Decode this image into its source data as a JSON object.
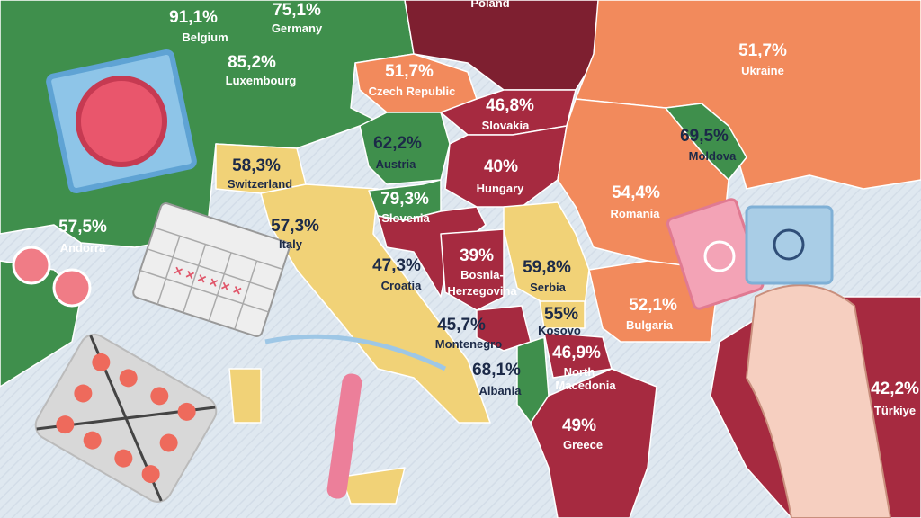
{
  "regions": [
    {
      "name": [
        "Poland"
      ]
    },
    {
      "name": [
        "Belgium"
      ],
      "value": "91,1%"
    },
    {
      "name": [
        "Germany"
      ],
      "value": "75,1%"
    },
    {
      "name": [
        "Luxembourg"
      ],
      "value": "85,2%"
    },
    {
      "name": [
        "Czech Republic"
      ],
      "value": "51,7%"
    },
    {
      "name": [
        "Ukraine"
      ],
      "value": "51,7%"
    },
    {
      "name": [
        "Slovakia"
      ],
      "value": "46,8%"
    },
    {
      "name": [
        "Austria"
      ],
      "value": "62,2%"
    },
    {
      "name": [
        "Moldova"
      ],
      "value": "69,5%"
    },
    {
      "name": [
        "Switzerland"
      ],
      "value": "58,3%"
    },
    {
      "name": [
        "Hungary"
      ],
      "value": "40%"
    },
    {
      "name": [
        "Romania"
      ],
      "value": "54,4%"
    },
    {
      "name": [
        "Slovenia"
      ],
      "value": "79,3%"
    },
    {
      "name": [
        "Andorra"
      ],
      "value": "57,5%"
    },
    {
      "name": [
        "Italy"
      ],
      "value": "57,3%"
    },
    {
      "name": [
        "Croatia"
      ],
      "value": "47,3%"
    },
    {
      "name": [
        "Bosnia-",
        "Herzegovina"
      ],
      "value": "39%"
    },
    {
      "name": [
        "Serbia"
      ],
      "value": "59,8%"
    },
    {
      "name": [
        "Kosovo"
      ],
      "value": "55%"
    },
    {
      "name": [
        "Bulgaria"
      ],
      "value": "52,1%"
    },
    {
      "name": [
        "Montenegro"
      ],
      "value": "45,7%"
    },
    {
      "name": [
        "North",
        "Macedonia"
      ],
      "value": "46,9%"
    },
    {
      "name": [
        "Albania"
      ],
      "value": "68,1%"
    },
    {
      "name": [
        "Greece"
      ],
      "value": "49%"
    },
    {
      "name": [
        "Türkiye"
      ],
      "value": "42,2%"
    }
  ]
}
